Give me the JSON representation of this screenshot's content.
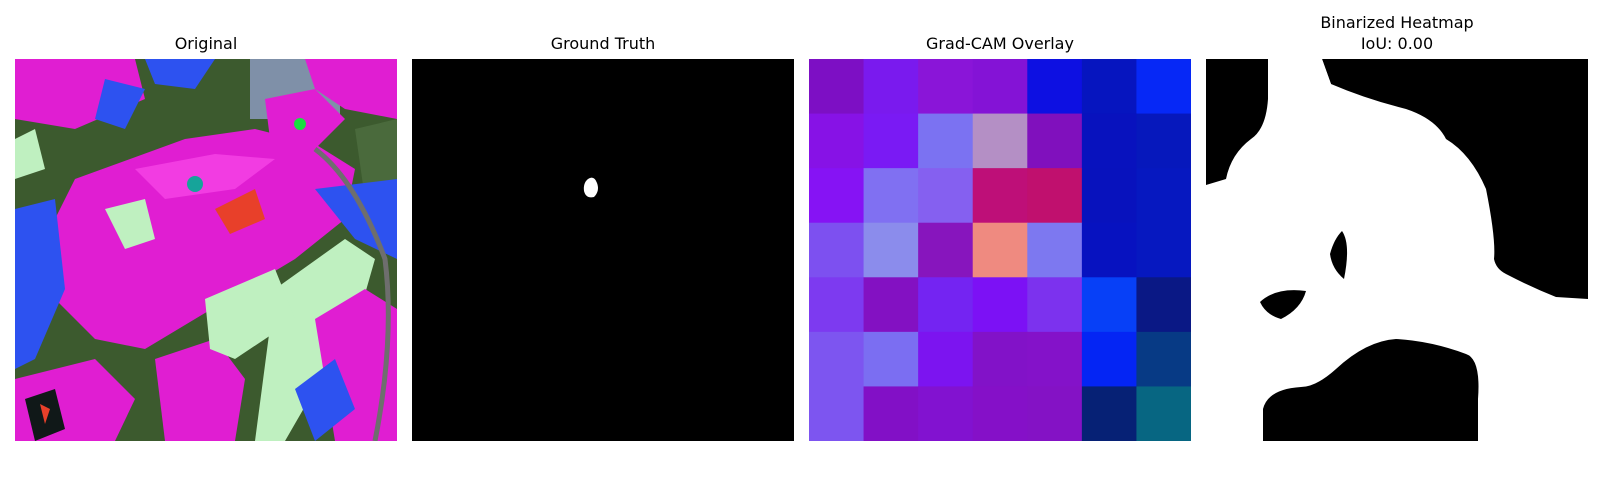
{
  "panels": [
    {
      "title": "Original"
    },
    {
      "title": "Ground Truth"
    },
    {
      "title": "Grad-CAM Overlay"
    },
    {
      "title": "Binarized Heatmap",
      "subtitle": "IoU: 0.00"
    }
  ],
  "gradcam_grid": [
    [
      "#7d0fc4",
      "#7a1aee",
      "#8a15d8",
      "#8413d6",
      "#0d10e2",
      "#0615bf",
      "#0628f6"
    ],
    [
      "#8712e6",
      "#7a1af4",
      "#7b72f2",
      "#b48fc5",
      "#8010bd",
      "#0812be",
      "#0618bc"
    ],
    [
      "#8613f4",
      "#8070f2",
      "#8560f0",
      "#be0f78",
      "#c0106e",
      "#0812bd",
      "#0618c0"
    ],
    [
      "#7d50f0",
      "#8b8cec",
      "#8715bd",
      "#ef8a80",
      "#7d78f0",
      "#0712c0",
      "#0618c0"
    ],
    [
      "#7d3af0",
      "#8311c2",
      "#7424f2",
      "#7c11f5",
      "#7c32ee",
      "#0740f7",
      "#0a1885"
    ],
    [
      "#7d55f0",
      "#7b6ef2",
      "#7c14f0",
      "#8212c8",
      "#8412c9",
      "#0425f4",
      "#073a85"
    ],
    [
      "#7d55f0",
      "#8210c6",
      "#8212d0",
      "#8510c8",
      "#8412c5",
      "#062175",
      "#076682"
    ]
  ]
}
